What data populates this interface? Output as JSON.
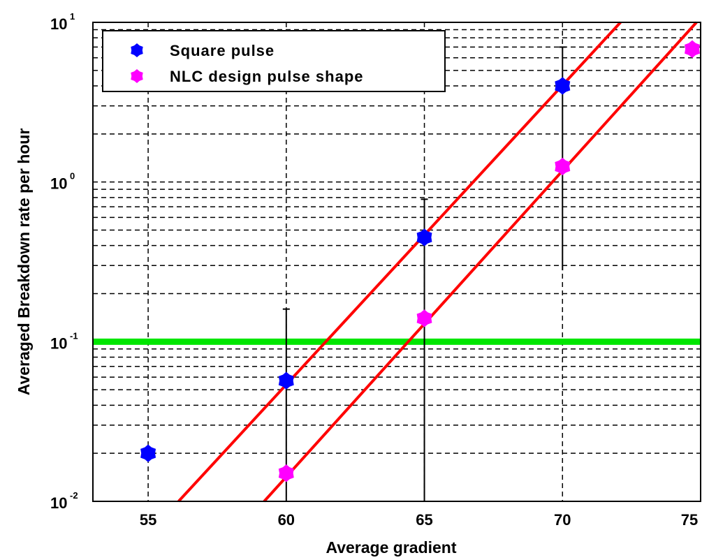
{
  "chart_data": {
    "type": "scatter",
    "xlabel": "Average gradient",
    "ylabel": "Averaged Breakdown rate per hour",
    "xlim": [
      53,
      75
    ],
    "ylim": [
      0.01,
      10
    ],
    "y_scale": "log",
    "grid": true,
    "grid_style": "dashed",
    "legend_position": "top-left",
    "x_ticks": [
      55,
      60,
      65,
      70,
      75
    ],
    "x_tick_labels": [
      "55",
      "60",
      "65",
      "70",
      "75"
    ],
    "y_ticks": [
      0.01,
      0.1,
      1,
      10
    ],
    "y_tick_labels": [
      {
        "base": "10",
        "exp": "-2"
      },
      {
        "base": "10",
        "exp": "-1"
      },
      {
        "base": "10",
        "exp": "0"
      },
      {
        "base": "10",
        "exp": "1"
      }
    ],
    "series": [
      {
        "name": "Square pulse",
        "color": "#0000ff",
        "marker": "star",
        "x": [
          55,
          60,
          65,
          70
        ],
        "y": [
          0.02,
          0.057,
          0.45,
          4.0
        ],
        "error_upper": [
          null,
          0.16,
          0.78,
          7.0
        ],
        "error_lower": [
          null,
          0.01,
          0.01,
          0.28
        ]
      },
      {
        "name": "NLC design pulse shape",
        "color": "#ff00ff",
        "marker": "star",
        "x": [
          60,
          65,
          70,
          75
        ],
        "y": [
          0.015,
          0.14,
          1.25,
          6.8
        ],
        "error_upper": [
          null,
          null,
          null,
          null
        ],
        "error_lower": [
          null,
          null,
          null,
          null
        ]
      }
    ],
    "fit_lines": [
      {
        "color": "#ff0000",
        "points": [
          [
            56.1,
            0.01
          ],
          [
            72.1,
            10
          ]
        ]
      },
      {
        "color": "#ff0000",
        "points": [
          [
            59.2,
            0.01
          ],
          [
            74.85,
            10
          ]
        ]
      }
    ],
    "threshold_line": {
      "y": 0.1,
      "color": "#00e600"
    }
  }
}
